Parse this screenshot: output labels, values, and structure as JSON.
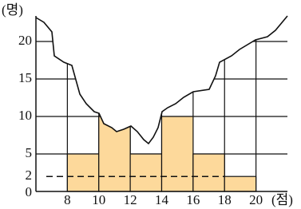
{
  "chart_data": {
    "type": "histogram",
    "y_label": "(명)",
    "x_label": "(점)",
    "bins": [
      8,
      10,
      12,
      14,
      16,
      18,
      20
    ],
    "values": [
      5,
      10,
      5,
      10,
      5,
      2
    ],
    "color": "#fdd99b",
    "xlim": [
      6,
      22
    ],
    "xticks": [
      8,
      10,
      12,
      14,
      16,
      18,
      20
    ],
    "ylim": [
      0,
      23
    ],
    "yticks": [
      0,
      2,
      5,
      10,
      15,
      20
    ],
    "grid": true
  }
}
